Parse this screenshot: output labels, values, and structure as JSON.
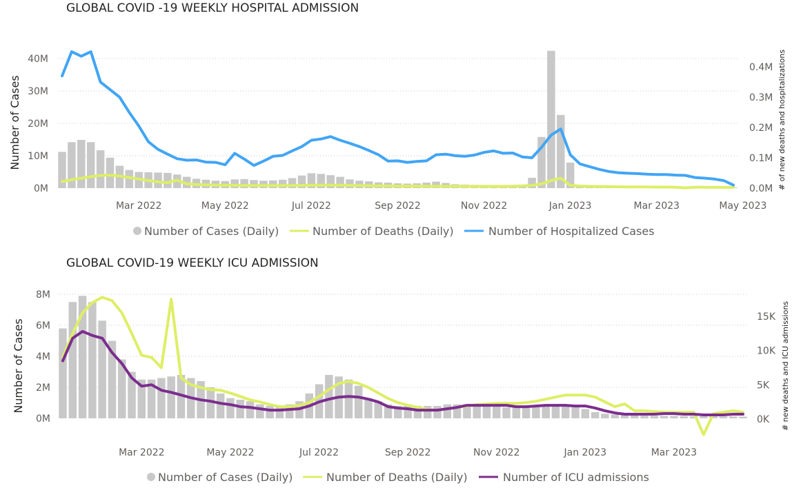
{
  "colors": {
    "cases": "#c8c8c8",
    "deaths": "#deee66",
    "hosp": "#41a5f5",
    "icu": "#7b2d8e"
  },
  "chart_data": [
    {
      "type": "bar+line",
      "title": "GLOBAL COVID -19 WEEKLY HOSPITAL ADMISSION",
      "ylabel": "Number of Cases",
      "y2label": "# of new deaths and hospitalizations",
      "ylim": [
        0,
        40000000
      ],
      "y2lim": [
        0,
        400000
      ],
      "y_ticks": [
        {
          "v": 0,
          "label": "0M"
        },
        {
          "v": 10000000,
          "label": "10M"
        },
        {
          "v": 20000000,
          "label": "20M"
        },
        {
          "v": 30000000,
          "label": "30M"
        },
        {
          "v": 40000000,
          "label": "40M"
        }
      ],
      "y2_ticks": [
        {
          "v": 0,
          "label": "0.0M"
        },
        {
          "v": 100000,
          "label": "0.1M"
        },
        {
          "v": 200000,
          "label": "0.2M"
        },
        {
          "v": 300000,
          "label": "0.3M"
        },
        {
          "v": 400000,
          "label": "0.4M"
        }
      ],
      "x_ticks": [
        {
          "i": 8,
          "label": "Mar 2022"
        },
        {
          "i": 17,
          "label": "May 2022"
        },
        {
          "i": 26,
          "label": "Jul 2022"
        },
        {
          "i": 35,
          "label": "Sep 2022"
        },
        {
          "i": 44,
          "label": "Nov 2022"
        },
        {
          "i": 53,
          "label": "Jan 2023"
        },
        {
          "i": 62,
          "label": "Mar 2023"
        },
        {
          "i": 71,
          "label": "May 2023"
        }
      ],
      "series": [
        {
          "name": "Number of Cases (Daily)",
          "kind": "bar",
          "axis": "y",
          "color": "cases",
          "values": [
            11200000,
            14200000,
            14900000,
            14200000,
            11700000,
            9400000,
            6900000,
            5600000,
            5000000,
            4900000,
            4800000,
            4700000,
            4200000,
            3500000,
            2900000,
            2600000,
            2300000,
            2200000,
            2700000,
            2800000,
            2500000,
            2300000,
            2400000,
            2600000,
            3100000,
            3900000,
            4600000,
            4400000,
            4000000,
            3500000,
            2700000,
            2300000,
            2100000,
            1800000,
            1700000,
            1500000,
            1400000,
            1500000,
            1700000,
            2000000,
            1600000,
            1200000,
            1100000,
            1000000,
            900000,
            800000,
            900000,
            900000,
            1000000,
            3200000,
            15800000,
            42400000,
            22600000,
            7900000,
            900000,
            700000,
            600000,
            500000,
            400000,
            400000,
            300000,
            300000,
            300000,
            300000,
            200000,
            200000,
            200000,
            200000,
            200000,
            200000,
            200000
          ]
        },
        {
          "name": "Number of Deaths (Daily)",
          "kind": "line",
          "axis": "y2",
          "color": "deaths",
          "values": [
            22000,
            28000,
            33000,
            38000,
            42000,
            43000,
            40000,
            35000,
            30000,
            25000,
            21000,
            18000,
            26000,
            14000,
            12000,
            11000,
            10000,
            9500,
            9000,
            8700,
            8500,
            8300,
            8200,
            8300,
            8600,
            9000,
            9500,
            10000,
            9800,
            9500,
            9000,
            8500,
            8000,
            7500,
            7000,
            6800,
            6600,
            6500,
            6400,
            6300,
            6200,
            6100,
            6000,
            5900,
            5800,
            5800,
            6000,
            6500,
            7500,
            9000,
            14000,
            25000,
            33000,
            9000,
            7000,
            6000,
            5500,
            5000,
            4500,
            4200,
            4000,
            3800,
            3500,
            3300,
            3100,
            1000,
            3200,
            3000,
            2800,
            2600,
            2500
          ]
        },
        {
          "name": "Number of Hospitalized Cases",
          "kind": "line",
          "axis": "y2",
          "color": "hosp",
          "values": [
            370000,
            450000,
            435000,
            450000,
            350000,
            325000,
            300000,
            250000,
            205000,
            153000,
            128000,
            112000,
            97000,
            92000,
            93000,
            86000,
            85000,
            77000,
            115000,
            96000,
            75000,
            89000,
            105000,
            108000,
            123000,
            137000,
            158000,
            162000,
            170000,
            158000,
            148000,
            137000,
            124000,
            110000,
            89000,
            90000,
            85000,
            88000,
            90000,
            110000,
            112000,
            107000,
            105000,
            109000,
            118000,
            123000,
            115000,
            116000,
            103000,
            100000,
            135000,
            175000,
            195000,
            110000,
            80000,
            71000,
            62000,
            55000,
            51000,
            49000,
            48000,
            46000,
            45000,
            45000,
            43000,
            42000,
            35000,
            33000,
            30000,
            25000,
            10000
          ]
        }
      ],
      "legend": [
        "Number of Cases (Daily)",
        "Number of Deaths (Daily)",
        "Number of Hospitalized Cases"
      ]
    },
    {
      "type": "bar+line",
      "title": "GLOBAL COVID-19 WEEKLY ICU ADMISSION",
      "ylabel": "Number of Cases",
      "y2label": "# new deaths and ICU admissions",
      "ylim": [
        0,
        8000000
      ],
      "y2lim": [
        0,
        18000
      ],
      "y_ticks": [
        {
          "v": 0,
          "label": "0M"
        },
        {
          "v": 2000000,
          "label": "2M"
        },
        {
          "v": 4000000,
          "label": "4M"
        },
        {
          "v": 6000000,
          "label": "6M"
        },
        {
          "v": 8000000,
          "label": "8M"
        }
      ],
      "y2_ticks": [
        {
          "v": 0,
          "label": "0K"
        },
        {
          "v": 5000,
          "label": "5K"
        },
        {
          "v": 10000,
          "label": "10K"
        },
        {
          "v": 15000,
          "label": "15K"
        }
      ],
      "x_ticks": [
        {
          "i": 8,
          "label": "Mar 2022"
        },
        {
          "i": 17,
          "label": "May 2022"
        },
        {
          "i": 26,
          "label": "Jul 2022"
        },
        {
          "i": 35,
          "label": "Sep 2022"
        },
        {
          "i": 44,
          "label": "Nov 2022"
        },
        {
          "i": 53,
          "label": "Jan 2023"
        },
        {
          "i": 62,
          "label": "Mar 2023"
        }
      ],
      "series": [
        {
          "name": "Number of Cases (Daily)",
          "kind": "bar",
          "axis": "y",
          "color": "cases",
          "values": [
            5800000,
            7500000,
            7900000,
            7500000,
            6300000,
            5000000,
            3800000,
            3000000,
            2500000,
            2500000,
            2600000,
            2700000,
            2800000,
            2600000,
            2400000,
            2000000,
            1600000,
            1300000,
            1200000,
            1100000,
            900000,
            800000,
            800000,
            900000,
            1100000,
            1600000,
            2200000,
            2800000,
            2700000,
            2500000,
            2100000,
            1300000,
            1100000,
            900000,
            800000,
            800000,
            800000,
            800000,
            800000,
            900000,
            900000,
            900000,
            900000,
            900000,
            800000,
            700000,
            700000,
            800000,
            800000,
            800000,
            800000,
            900000,
            800000,
            600000,
            400000,
            300000,
            250000,
            200000,
            180000,
            170000,
            160000,
            150000,
            150000,
            140000,
            140000,
            130000,
            130000,
            120000,
            120000,
            110000
          ]
        },
        {
          "name": "Number of Deaths (Daily)",
          "kind": "line",
          "axis": "y2",
          "color": "deaths",
          "values": [
            9000,
            12500,
            15500,
            17000,
            17800,
            17300,
            15500,
            12500,
            9300,
            9000,
            7500,
            17500,
            6000,
            5000,
            4600,
            4300,
            4200,
            3800,
            3300,
            2800,
            2500,
            2100,
            1800,
            1800,
            2000,
            2400,
            3300,
            4300,
            5200,
            5500,
            5200,
            4600,
            3800,
            3000,
            2400,
            2000,
            1700,
            1400,
            1300,
            1500,
            1700,
            1900,
            2100,
            2200,
            2300,
            2300,
            2300,
            2400,
            2600,
            2900,
            3200,
            3500,
            3500,
            3500,
            3200,
            2500,
            1800,
            2200,
            1200,
            1200,
            1100,
            1000,
            1000,
            1000,
            1000,
            -2300,
            800,
            1000,
            1200,
            1000
          ]
        },
        {
          "name": "Number of ICU admissions",
          "kind": "line",
          "axis": "y2",
          "color": "icu",
          "values": [
            8500,
            11800,
            12800,
            12200,
            11800,
            9700,
            8100,
            6000,
            4800,
            5000,
            4200,
            3900,
            3500,
            3100,
            2800,
            2600,
            2300,
            2100,
            1800,
            1700,
            1500,
            1300,
            1300,
            1400,
            1500,
            1900,
            2500,
            2900,
            3200,
            3300,
            3200,
            2900,
            2500,
            1800,
            1600,
            1500,
            1300,
            1300,
            1300,
            1500,
            1700,
            2000,
            2000,
            2000,
            2000,
            2000,
            1800,
            1800,
            1900,
            2000,
            2000,
            2000,
            1900,
            1900,
            1600,
            1200,
            900,
            700,
            700,
            700,
            700,
            800,
            800,
            700,
            700,
            600,
            600,
            600,
            700,
            700
          ]
        }
      ],
      "legend": [
        "Number of Cases (Daily)",
        "Number of Deaths (Daily)",
        "Number of ICU admissions"
      ]
    }
  ]
}
